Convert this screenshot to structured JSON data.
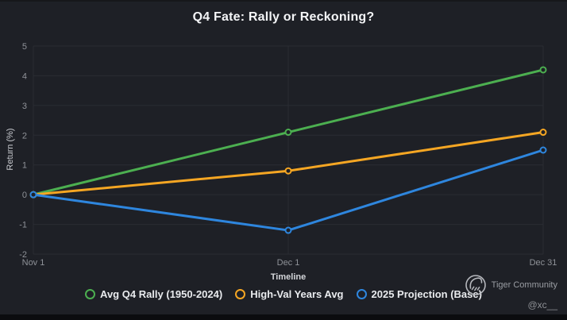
{
  "chart_data": {
    "type": "line",
    "title": "Q4 Fate: Rally or Reckoning?",
    "xlabel": "Timeline",
    "ylabel": "Return (%)",
    "x_categories": [
      "Nov 1",
      "Dec 1",
      "Dec 31"
    ],
    "x_positions": [
      0,
      0.5,
      1
    ],
    "ylim": [
      -2,
      5
    ],
    "yticks": [
      5,
      4,
      3,
      2,
      1,
      0,
      -1,
      -2
    ],
    "grid": true,
    "legend_position": "bottom",
    "series": [
      {
        "name": "Avg Q4 Rally (1950-2024)",
        "color": "#4caf50",
        "values": [
          0,
          2.1,
          4.2
        ]
      },
      {
        "name": "High-Val Years Avg",
        "color": "#f5a623",
        "values": [
          0,
          0.8,
          2.1
        ]
      },
      {
        "name": "2025 Projection (Base)",
        "color": "#2e86de",
        "values": [
          0,
          -1.2,
          1.5
        ]
      }
    ]
  },
  "colors": {
    "background": "#1e2026",
    "grid": "#2a2c33",
    "tick_text": "#8f9298",
    "axis_title_text": "#d4d6da",
    "legend_text": "#e9ebee",
    "title_text": "#f4f5f7",
    "watermark_text": "#9a9da3",
    "marker_fill": "#1e2026",
    "bottom_bar": "#0b0c0f"
  },
  "watermark": {
    "community": "Tiger Community",
    "handle": "@xc__",
    "logo_icon": "tiger-doodle-circle"
  }
}
